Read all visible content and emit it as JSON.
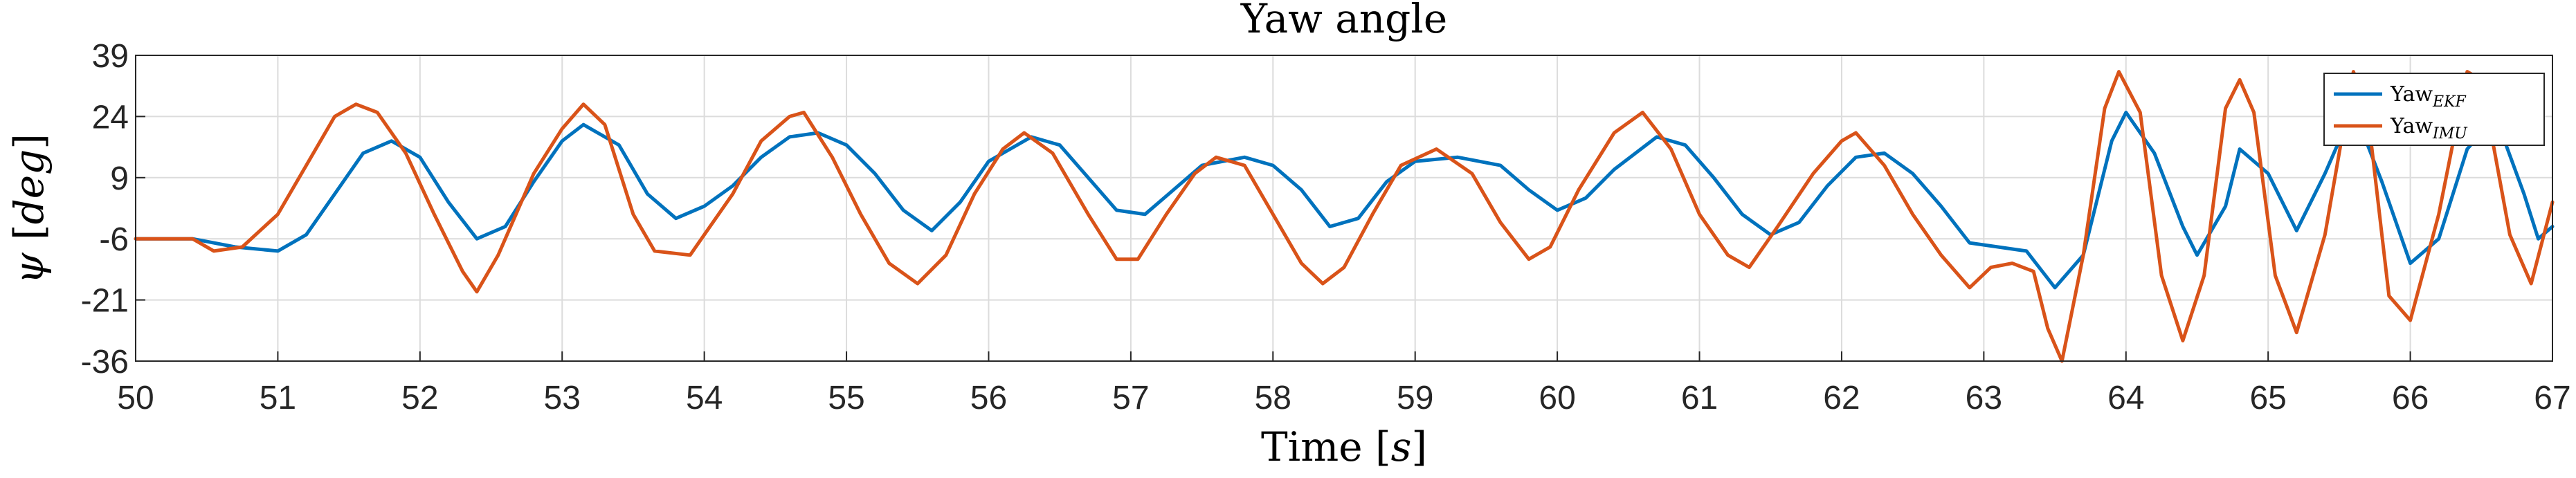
{
  "chart_data": {
    "type": "line",
    "title": "Yaw angle",
    "xlabel_main": "Time",
    "xlabel_unit": "s",
    "ylabel_symbol": "ψ",
    "ylabel_unit": "deg",
    "xlim": [
      50,
      67
    ],
    "ylim": [
      -36,
      39
    ],
    "xticks": [
      50,
      51,
      52,
      53,
      54,
      55,
      56,
      57,
      58,
      59,
      60,
      61,
      62,
      63,
      64,
      65,
      66,
      67
    ],
    "yticks": [
      -36,
      -21,
      -6,
      9,
      24,
      39
    ],
    "grid": true,
    "legend_position": "top-right",
    "series": [
      {
        "name": "Yaw",
        "subscript": "EKF",
        "color": "#0072BD",
        "points": [
          [
            50.0,
            -6
          ],
          [
            50.4,
            -6
          ],
          [
            50.7,
            -8
          ],
          [
            51.0,
            -9
          ],
          [
            51.2,
            -5
          ],
          [
            51.4,
            5
          ],
          [
            51.6,
            15
          ],
          [
            51.8,
            18
          ],
          [
            52.0,
            14
          ],
          [
            52.2,
            3
          ],
          [
            52.4,
            -6
          ],
          [
            52.6,
            -3
          ],
          [
            52.8,
            8
          ],
          [
            53.0,
            18
          ],
          [
            53.15,
            22
          ],
          [
            53.4,
            17
          ],
          [
            53.6,
            5
          ],
          [
            53.8,
            -1
          ],
          [
            54.0,
            2
          ],
          [
            54.2,
            7
          ],
          [
            54.4,
            14
          ],
          [
            54.6,
            19
          ],
          [
            54.8,
            20
          ],
          [
            55.0,
            17
          ],
          [
            55.2,
            10
          ],
          [
            55.4,
            1
          ],
          [
            55.6,
            -4
          ],
          [
            55.8,
            3
          ],
          [
            56.0,
            13
          ],
          [
            56.3,
            19
          ],
          [
            56.5,
            17
          ],
          [
            56.7,
            9
          ],
          [
            56.9,
            1
          ],
          [
            57.1,
            0
          ],
          [
            57.3,
            6
          ],
          [
            57.5,
            12
          ],
          [
            57.8,
            14
          ],
          [
            58.0,
            12
          ],
          [
            58.2,
            6
          ],
          [
            58.4,
            -3
          ],
          [
            58.6,
            -1
          ],
          [
            58.8,
            8
          ],
          [
            59.0,
            13
          ],
          [
            59.3,
            14
          ],
          [
            59.6,
            12
          ],
          [
            59.8,
            6
          ],
          [
            60.0,
            1
          ],
          [
            60.2,
            4
          ],
          [
            60.4,
            11
          ],
          [
            60.7,
            19
          ],
          [
            60.9,
            17
          ],
          [
            61.1,
            9
          ],
          [
            61.3,
            0
          ],
          [
            61.5,
            -5
          ],
          [
            61.7,
            -2
          ],
          [
            61.9,
            7
          ],
          [
            62.1,
            14
          ],
          [
            62.3,
            15
          ],
          [
            62.5,
            10
          ],
          [
            62.7,
            2
          ],
          [
            62.9,
            -7
          ],
          [
            63.1,
            -8
          ],
          [
            63.3,
            -9
          ],
          [
            63.5,
            -18
          ],
          [
            63.7,
            -10
          ],
          [
            63.9,
            18
          ],
          [
            64.0,
            25
          ],
          [
            64.2,
            15
          ],
          [
            64.4,
            -3
          ],
          [
            64.5,
            -10
          ],
          [
            64.7,
            2
          ],
          [
            64.8,
            16
          ],
          [
            65.0,
            10
          ],
          [
            65.2,
            -4
          ],
          [
            65.4,
            10
          ],
          [
            65.6,
            26
          ],
          [
            65.8,
            8
          ],
          [
            66.0,
            -12
          ],
          [
            66.2,
            -6
          ],
          [
            66.4,
            16
          ],
          [
            66.6,
            24
          ],
          [
            66.8,
            5
          ],
          [
            66.9,
            -6
          ],
          [
            67.0,
            -3
          ]
        ]
      },
      {
        "name": "Yaw",
        "subscript": "IMU",
        "color": "#D95319",
        "points": [
          [
            50.0,
            -6
          ],
          [
            50.4,
            -6
          ],
          [
            50.55,
            -9
          ],
          [
            50.75,
            -8
          ],
          [
            51.0,
            0
          ],
          [
            51.2,
            12
          ],
          [
            51.4,
            24
          ],
          [
            51.55,
            27
          ],
          [
            51.7,
            25
          ],
          [
            51.9,
            15
          ],
          [
            52.1,
            0
          ],
          [
            52.3,
            -14
          ],
          [
            52.4,
            -19
          ],
          [
            52.55,
            -10
          ],
          [
            52.8,
            10
          ],
          [
            53.0,
            21
          ],
          [
            53.15,
            27
          ],
          [
            53.3,
            22
          ],
          [
            53.5,
            0
          ],
          [
            53.65,
            -9
          ],
          [
            53.9,
            -10
          ],
          [
            54.0,
            -5
          ],
          [
            54.2,
            5
          ],
          [
            54.4,
            18
          ],
          [
            54.6,
            24
          ],
          [
            54.7,
            25
          ],
          [
            54.9,
            14
          ],
          [
            55.1,
            0
          ],
          [
            55.3,
            -12
          ],
          [
            55.5,
            -17
          ],
          [
            55.7,
            -10
          ],
          [
            55.9,
            5
          ],
          [
            56.1,
            16
          ],
          [
            56.25,
            20
          ],
          [
            56.45,
            15
          ],
          [
            56.7,
            0
          ],
          [
            56.9,
            -11
          ],
          [
            57.05,
            -11
          ],
          [
            57.25,
            0
          ],
          [
            57.45,
            10
          ],
          [
            57.6,
            14
          ],
          [
            57.8,
            12
          ],
          [
            58.0,
            0
          ],
          [
            58.2,
            -12
          ],
          [
            58.35,
            -17
          ],
          [
            58.5,
            -13
          ],
          [
            58.7,
            0
          ],
          [
            58.9,
            12
          ],
          [
            59.15,
            16
          ],
          [
            59.4,
            10
          ],
          [
            59.6,
            -2
          ],
          [
            59.8,
            -11
          ],
          [
            59.95,
            -8
          ],
          [
            60.15,
            6
          ],
          [
            60.4,
            20
          ],
          [
            60.6,
            25
          ],
          [
            60.8,
            16
          ],
          [
            61.0,
            0
          ],
          [
            61.2,
            -10
          ],
          [
            61.35,
            -13
          ],
          [
            61.55,
            -3
          ],
          [
            61.8,
            10
          ],
          [
            62.0,
            18
          ],
          [
            62.1,
            20
          ],
          [
            62.3,
            12
          ],
          [
            62.5,
            0
          ],
          [
            62.7,
            -10
          ],
          [
            62.9,
            -18
          ],
          [
            63.05,
            -13
          ],
          [
            63.2,
            -12
          ],
          [
            63.35,
            -14
          ],
          [
            63.45,
            -28
          ],
          [
            63.55,
            -36
          ],
          [
            63.7,
            -10
          ],
          [
            63.85,
            26
          ],
          [
            63.95,
            35
          ],
          [
            64.1,
            25
          ],
          [
            64.25,
            -15
          ],
          [
            64.4,
            -31
          ],
          [
            64.55,
            -15
          ],
          [
            64.7,
            26
          ],
          [
            64.8,
            33
          ],
          [
            64.9,
            25
          ],
          [
            65.05,
            -15
          ],
          [
            65.2,
            -29
          ],
          [
            65.4,
            -5
          ],
          [
            65.6,
            35
          ],
          [
            65.7,
            25
          ],
          [
            65.85,
            -20
          ],
          [
            66.0,
            -26
          ],
          [
            66.2,
            0
          ],
          [
            66.4,
            35
          ],
          [
            66.5,
            33
          ],
          [
            66.7,
            -5
          ],
          [
            66.85,
            -17
          ],
          [
            67.0,
            3
          ]
        ]
      }
    ]
  }
}
